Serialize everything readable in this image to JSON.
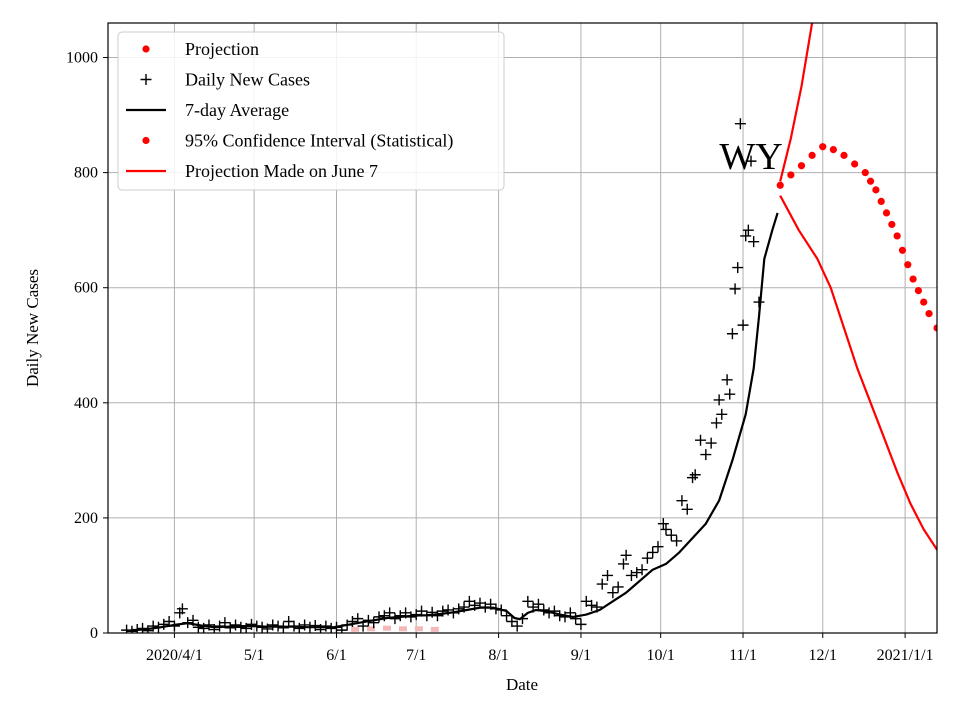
{
  "chart_data": {
    "type": "line",
    "title": "",
    "xlabel": "Date",
    "ylabel": "Daily New Cases",
    "annotation": "WY",
    "ylim": [
      0,
      1060
    ],
    "xlim_days": [
      -25,
      287
    ],
    "grid": true,
    "legend_position": "top-left",
    "x_ticks": [
      {
        "label": "2020/4/1",
        "day": 0
      },
      {
        "label": "5/1",
        "day": 30
      },
      {
        "label": "6/1",
        "day": 61
      },
      {
        "label": "7/1",
        "day": 91
      },
      {
        "label": "8/1",
        "day": 122
      },
      {
        "label": "9/1",
        "day": 153
      },
      {
        "label": "10/1",
        "day": 183
      },
      {
        "label": "11/1",
        "day": 214
      },
      {
        "label": "12/1",
        "day": 244
      },
      {
        "label": "2021/1/1",
        "day": 275
      }
    ],
    "y_ticks": [
      0,
      200,
      400,
      600,
      800,
      1000
    ],
    "legend": [
      {
        "label": "Projection",
        "marker": "dot",
        "color": "#ff0000"
      },
      {
        "label": "Daily New Cases",
        "marker": "plus",
        "color": "#000000"
      },
      {
        "label": "7-day Average",
        "marker": "line",
        "color": "#000000"
      },
      {
        "label": "95% Confidence Interval (Statistical)",
        "marker": "dot",
        "color": "#ff0000"
      },
      {
        "label": "Projection Made on June 7",
        "marker": "line",
        "color": "#ff0000"
      }
    ],
    "series": [
      {
        "name": "7-day Average",
        "style": "line",
        "color": "#000000",
        "points": [
          [
            -17,
            4
          ],
          [
            -10,
            7
          ],
          [
            -5,
            10
          ],
          [
            0,
            14
          ],
          [
            5,
            17
          ],
          [
            10,
            13
          ],
          [
            15,
            10
          ],
          [
            20,
            11
          ],
          [
            25,
            12
          ],
          [
            30,
            12
          ],
          [
            35,
            11
          ],
          [
            40,
            11
          ],
          [
            45,
            11
          ],
          [
            50,
            10
          ],
          [
            55,
            10
          ],
          [
            60,
            10
          ],
          [
            65,
            14
          ],
          [
            70,
            18
          ],
          [
            75,
            22
          ],
          [
            80,
            26
          ],
          [
            85,
            28
          ],
          [
            90,
            30
          ],
          [
            95,
            31
          ],
          [
            100,
            33
          ],
          [
            105,
            36
          ],
          [
            110,
            40
          ],
          [
            115,
            44
          ],
          [
            120,
            44
          ],
          [
            125,
            38
          ],
          [
            128,
            26
          ],
          [
            130,
            24
          ],
          [
            133,
            35
          ],
          [
            136,
            40
          ],
          [
            140,
            38
          ],
          [
            145,
            32
          ],
          [
            150,
            28
          ],
          [
            155,
            32
          ],
          [
            160,
            40
          ],
          [
            165,
            55
          ],
          [
            170,
            70
          ],
          [
            175,
            90
          ],
          [
            180,
            110
          ],
          [
            185,
            120
          ],
          [
            190,
            140
          ],
          [
            195,
            165
          ],
          [
            200,
            190
          ],
          [
            205,
            230
          ],
          [
            210,
            300
          ],
          [
            215,
            380
          ],
          [
            218,
            460
          ],
          [
            220,
            550
          ],
          [
            222,
            650
          ],
          [
            225,
            700
          ],
          [
            227,
            730
          ]
        ]
      },
      {
        "name": "Projection",
        "style": "dots",
        "color": "#ff0000",
        "points": [
          [
            228,
            778
          ],
          [
            232,
            796
          ],
          [
            236,
            812
          ],
          [
            240,
            830
          ],
          [
            244,
            845
          ],
          [
            248,
            840
          ],
          [
            252,
            830
          ],
          [
            256,
            815
          ],
          [
            260,
            800
          ],
          [
            262,
            785
          ],
          [
            264,
            770
          ],
          [
            266,
            750
          ],
          [
            268,
            730
          ],
          [
            270,
            710
          ],
          [
            272,
            690
          ],
          [
            274,
            665
          ],
          [
            276,
            640
          ],
          [
            278,
            615
          ],
          [
            280,
            595
          ],
          [
            282,
            575
          ],
          [
            284,
            555
          ],
          [
            287,
            530
          ],
          [
            290,
            505
          ],
          [
            293,
            480
          ],
          [
            296,
            455
          ],
          [
            299,
            430
          ],
          [
            302,
            405
          ],
          [
            305,
            380
          ],
          [
            308,
            355
          ],
          [
            311,
            325
          ],
          [
            313,
            307
          ]
        ]
      },
      {
        "name": "Projection Made on June 7 (upper)",
        "style": "line",
        "color": "#ff0000",
        "points": [
          [
            228,
            785
          ],
          [
            232,
            860
          ],
          [
            236,
            950
          ],
          [
            240,
            1060
          ]
        ]
      },
      {
        "name": "Projection Made on June 7 (lower)",
        "style": "line",
        "color": "#ff0000",
        "points": [
          [
            228,
            760
          ],
          [
            235,
            700
          ],
          [
            242,
            650
          ],
          [
            247,
            600
          ],
          [
            252,
            530
          ],
          [
            257,
            460
          ],
          [
            262,
            400
          ],
          [
            267,
            340
          ],
          [
            272,
            280
          ],
          [
            277,
            225
          ],
          [
            282,
            180
          ],
          [
            287,
            145
          ],
          [
            292,
            118
          ],
          [
            297,
            98
          ],
          [
            302,
            82
          ],
          [
            307,
            68
          ],
          [
            312,
            56
          ]
        ]
      },
      {
        "name": "Projection Made on June 7 (faint)",
        "style": "dashes",
        "color": "#f4b8b8",
        "points": [
          [
            68,
            2
          ],
          [
            74,
            3
          ],
          [
            80,
            4
          ],
          [
            86,
            3
          ],
          [
            92,
            3
          ],
          [
            98,
            2
          ]
        ]
      },
      {
        "name": "Daily New Cases",
        "style": "plus",
        "color": "#000000",
        "points": [
          [
            -18,
            5
          ],
          [
            -16,
            3
          ],
          [
            -14,
            6
          ],
          [
            -12,
            8
          ],
          [
            -10,
            4
          ],
          [
            -8,
            12
          ],
          [
            -6,
            10
          ],
          [
            -4,
            15
          ],
          [
            -2,
            20
          ],
          [
            0,
            12
          ],
          [
            2,
            35
          ],
          [
            3,
            42
          ],
          [
            5,
            18
          ],
          [
            7,
            22
          ],
          [
            9,
            10
          ],
          [
            11,
            8
          ],
          [
            13,
            14
          ],
          [
            15,
            6
          ],
          [
            17,
            12
          ],
          [
            19,
            18
          ],
          [
            21,
            9
          ],
          [
            23,
            14
          ],
          [
            25,
            10
          ],
          [
            27,
            8
          ],
          [
            29,
            15
          ],
          [
            31,
            12
          ],
          [
            33,
            10
          ],
          [
            35,
            7
          ],
          [
            37,
            14
          ],
          [
            39,
            12
          ],
          [
            41,
            9
          ],
          [
            43,
            20
          ],
          [
            45,
            12
          ],
          [
            47,
            8
          ],
          [
            49,
            14
          ],
          [
            51,
            10
          ],
          [
            53,
            13
          ],
          [
            55,
            6
          ],
          [
            57,
            12
          ],
          [
            59,
            8
          ],
          [
            61,
            10
          ],
          [
            63,
            5
          ],
          [
            65,
            14
          ],
          [
            67,
            20
          ],
          [
            69,
            25
          ],
          [
            71,
            12
          ],
          [
            73,
            22
          ],
          [
            75,
            18
          ],
          [
            77,
            28
          ],
          [
            79,
            30
          ],
          [
            81,
            35
          ],
          [
            83,
            25
          ],
          [
            85,
            30
          ],
          [
            87,
            35
          ],
          [
            89,
            28
          ],
          [
            91,
            32
          ],
          [
            93,
            38
          ],
          [
            95,
            30
          ],
          [
            97,
            36
          ],
          [
            99,
            30
          ],
          [
            101,
            38
          ],
          [
            103,
            40
          ],
          [
            105,
            35
          ],
          [
            107,
            42
          ],
          [
            109,
            45
          ],
          [
            111,
            55
          ],
          [
            113,
            48
          ],
          [
            115,
            52
          ],
          [
            117,
            45
          ],
          [
            119,
            50
          ],
          [
            121,
            42
          ],
          [
            123,
            40
          ],
          [
            125,
            30
          ],
          [
            127,
            20
          ],
          [
            129,
            12
          ],
          [
            131,
            25
          ],
          [
            133,
            55
          ],
          [
            135,
            45
          ],
          [
            137,
            50
          ],
          [
            139,
            40
          ],
          [
            141,
            35
          ],
          [
            143,
            38
          ],
          [
            145,
            30
          ],
          [
            147,
            28
          ],
          [
            149,
            35
          ],
          [
            151,
            25
          ],
          [
            153,
            15
          ],
          [
            155,
            55
          ],
          [
            157,
            48
          ],
          [
            159,
            45
          ],
          [
            161,
            85
          ],
          [
            163,
            100
          ],
          [
            165,
            70
          ],
          [
            167,
            80
          ],
          [
            169,
            120
          ],
          [
            170,
            135
          ],
          [
            172,
            100
          ],
          [
            174,
            105
          ],
          [
            176,
            110
          ],
          [
            178,
            130
          ],
          [
            180,
            140
          ],
          [
            182,
            150
          ],
          [
            184,
            190
          ],
          [
            185,
            180
          ],
          [
            187,
            170
          ],
          [
            189,
            160
          ],
          [
            191,
            230
          ],
          [
            193,
            215
          ],
          [
            195,
            270
          ],
          [
            196,
            275
          ],
          [
            198,
            335
          ],
          [
            200,
            310
          ],
          [
            202,
            330
          ],
          [
            204,
            365
          ],
          [
            205,
            405
          ],
          [
            206,
            380
          ],
          [
            208,
            440
          ],
          [
            209,
            415
          ],
          [
            210,
            520
          ],
          [
            211,
            598
          ],
          [
            212,
            635
          ],
          [
            214,
            535
          ],
          [
            215,
            690
          ],
          [
            216,
            700
          ],
          [
            218,
            680
          ],
          [
            220,
            575
          ],
          [
            213,
            885
          ],
          [
            217,
            820
          ]
        ]
      }
    ]
  }
}
